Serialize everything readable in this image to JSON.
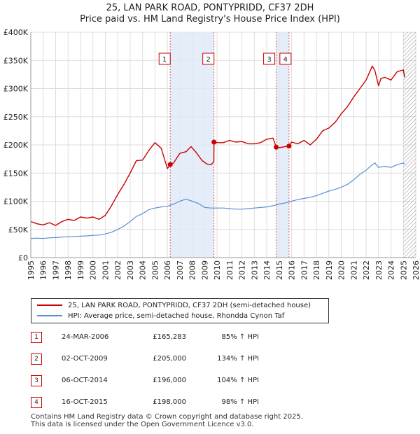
{
  "title": "25, LAN PARK ROAD, PONTYPRIDD, CF37 2DH",
  "subtitle": "Price paid vs. HM Land Registry's House Price Index (HPI)",
  "colors": {
    "property": "#cc0000",
    "hpi": "#5b8fd0",
    "band": "#dfe8f7",
    "grid": "#dddddd",
    "hatch": "#999999"
  },
  "chart_data": {
    "type": "line",
    "xlim": [
      1995,
      2026
    ],
    "ylim": [
      0,
      400000
    ],
    "y_ticks": [
      {
        "value": 0,
        "label": "£0"
      },
      {
        "value": 50000,
        "label": "£50K"
      },
      {
        "value": 100000,
        "label": "£100K"
      },
      {
        "value": 150000,
        "label": "£150K"
      },
      {
        "value": 200000,
        "label": "£200K"
      },
      {
        "value": 250000,
        "label": "£250K"
      },
      {
        "value": 300000,
        "label": "£300K"
      },
      {
        "value": 350000,
        "label": "£350K"
      },
      {
        "value": 400000,
        "label": "£400K"
      }
    ],
    "x_ticks": [
      "1995",
      "1996",
      "1997",
      "1998",
      "1999",
      "2000",
      "2001",
      "2002",
      "2003",
      "2004",
      "2005",
      "2006",
      "2007",
      "2008",
      "2009",
      "2010",
      "2011",
      "2012",
      "2013",
      "2014",
      "2015",
      "2016",
      "2017",
      "2018",
      "2019",
      "2020",
      "2021",
      "2022",
      "2023",
      "2024",
      "2025",
      "2026"
    ],
    "shaded_periods": [
      [
        2006.23,
        2009.75
      ],
      [
        2014.76,
        2015.79
      ]
    ],
    "future_from": 2025.0,
    "series": [
      {
        "name": "25, LAN PARK ROAD, PONTYPRIDD, CF37 2DH (semi-detached house)",
        "x": [
          1995,
          1995.5,
          1996,
          1996.5,
          1997,
          1997.5,
          1998,
          1998.5,
          1999,
          1999.5,
          2000,
          2000.5,
          2001,
          2001.5,
          2002,
          2002.5,
          2003,
          2003.5,
          2004,
          2004.5,
          2005,
          2005.5,
          2006.0,
          2006.23,
          2006.5,
          2007,
          2007.5,
          2007.9,
          2008.3,
          2008.8,
          2009.2,
          2009.5,
          2009.74,
          2009.75,
          2010,
          2010.5,
          2011,
          2011.5,
          2012,
          2012.5,
          2013,
          2013.5,
          2014,
          2014.5,
          2014.76,
          2015,
          2015.5,
          2015.79,
          2016,
          2016.5,
          2017,
          2017.5,
          2018,
          2018.5,
          2019,
          2019.5,
          2020,
          2020.5,
          2021,
          2021.5,
          2022,
          2022.5,
          2022.7,
          2023,
          2023.2,
          2023.5,
          2024,
          2024.5,
          2025,
          2025.1
        ],
        "values": [
          64000,
          60000,
          58000,
          62000,
          57000,
          64000,
          68000,
          66000,
          72000,
          70000,
          72000,
          68000,
          75000,
          92000,
          112000,
          130000,
          150000,
          172000,
          173000,
          190000,
          204000,
          194000,
          158000,
          165283,
          168000,
          185000,
          188000,
          197000,
          187000,
          172000,
          166000,
          165000,
          170000,
          205000,
          204000,
          204000,
          208000,
          205000,
          206000,
          202000,
          202000,
          204000,
          210000,
          212000,
          196000,
          195000,
          197000,
          198000,
          205000,
          202000,
          208000,
          200000,
          210000,
          225000,
          230000,
          240000,
          255000,
          268000,
          285000,
          300000,
          315000,
          340000,
          332000,
          305000,
          318000,
          320000,
          315000,
          330000,
          333000,
          320000
        ]
      },
      {
        "name": "HPI: Average price, semi-detached house, Rhondda Cynon Taf",
        "x": [
          1995,
          1995.5,
          1996,
          1996.5,
          1997,
          1997.5,
          1998,
          1998.5,
          1999,
          1999.5,
          2000,
          2000.5,
          2001,
          2001.5,
          2002,
          2002.5,
          2003,
          2003.5,
          2004,
          2004.5,
          2005,
          2005.5,
          2006,
          2006.5,
          2007,
          2007.5,
          2008,
          2008.5,
          2009,
          2009.5,
          2010,
          2010.5,
          2011,
          2011.5,
          2012,
          2012.5,
          2013,
          2013.5,
          2014,
          2014.5,
          2015,
          2015.5,
          2016,
          2016.5,
          2017,
          2017.5,
          2018,
          2018.5,
          2019,
          2019.5,
          2020,
          2020.5,
          2021,
          2021.5,
          2022,
          2022.5,
          2022.7,
          2023,
          2023.5,
          2024,
          2024.5,
          2025,
          2025.1
        ],
        "values": [
          34000,
          34500,
          34000,
          35000,
          35500,
          36500,
          37000,
          37500,
          38000,
          38500,
          39500,
          40000,
          42000,
          45000,
          50000,
          56000,
          64000,
          73000,
          78000,
          85000,
          88000,
          90000,
          91000,
          95000,
          100000,
          104000,
          100000,
          96000,
          89000,
          88000,
          88000,
          88000,
          87000,
          86000,
          86000,
          87000,
          88000,
          89000,
          90000,
          92000,
          95000,
          97000,
          100000,
          103000,
          105000,
          107000,
          110000,
          114000,
          118000,
          121000,
          125000,
          130000,
          138000,
          148000,
          155000,
          165000,
          168000,
          160000,
          162000,
          160000,
          165000,
          168000,
          166000
        ]
      }
    ],
    "sales": [
      {
        "label": "1",
        "x": 2006.23,
        "value": 165283
      },
      {
        "label": "2",
        "x": 2009.75,
        "value": 205000
      },
      {
        "label": "3",
        "x": 2014.76,
        "value": 196000
      },
      {
        "label": "4",
        "x": 2015.79,
        "value": 198000
      }
    ]
  },
  "legend": [
    {
      "label": "25, LAN PARK ROAD, PONTYPRIDD, CF37 2DH (semi-detached house)",
      "color": "#cc0000"
    },
    {
      "label": "HPI: Average price, semi-detached house, Rhondda Cynon Taf",
      "color": "#5b8fd0"
    }
  ],
  "sales_table": [
    {
      "num": "1",
      "date": "24-MAR-2006",
      "price": "£165,283",
      "hpi": "85% ↑ HPI"
    },
    {
      "num": "2",
      "date": "02-OCT-2009",
      "price": "£205,000",
      "hpi": "134% ↑ HPI"
    },
    {
      "num": "3",
      "date": "06-OCT-2014",
      "price": "£196,000",
      "hpi": "104% ↑ HPI"
    },
    {
      "num": "4",
      "date": "16-OCT-2015",
      "price": "£198,000",
      "hpi": "98% ↑ HPI"
    }
  ],
  "footer": {
    "line1": "Contains HM Land Registry data © Crown copyright and database right 2025.",
    "line2": "This data is licensed under the Open Government Licence v3.0."
  }
}
